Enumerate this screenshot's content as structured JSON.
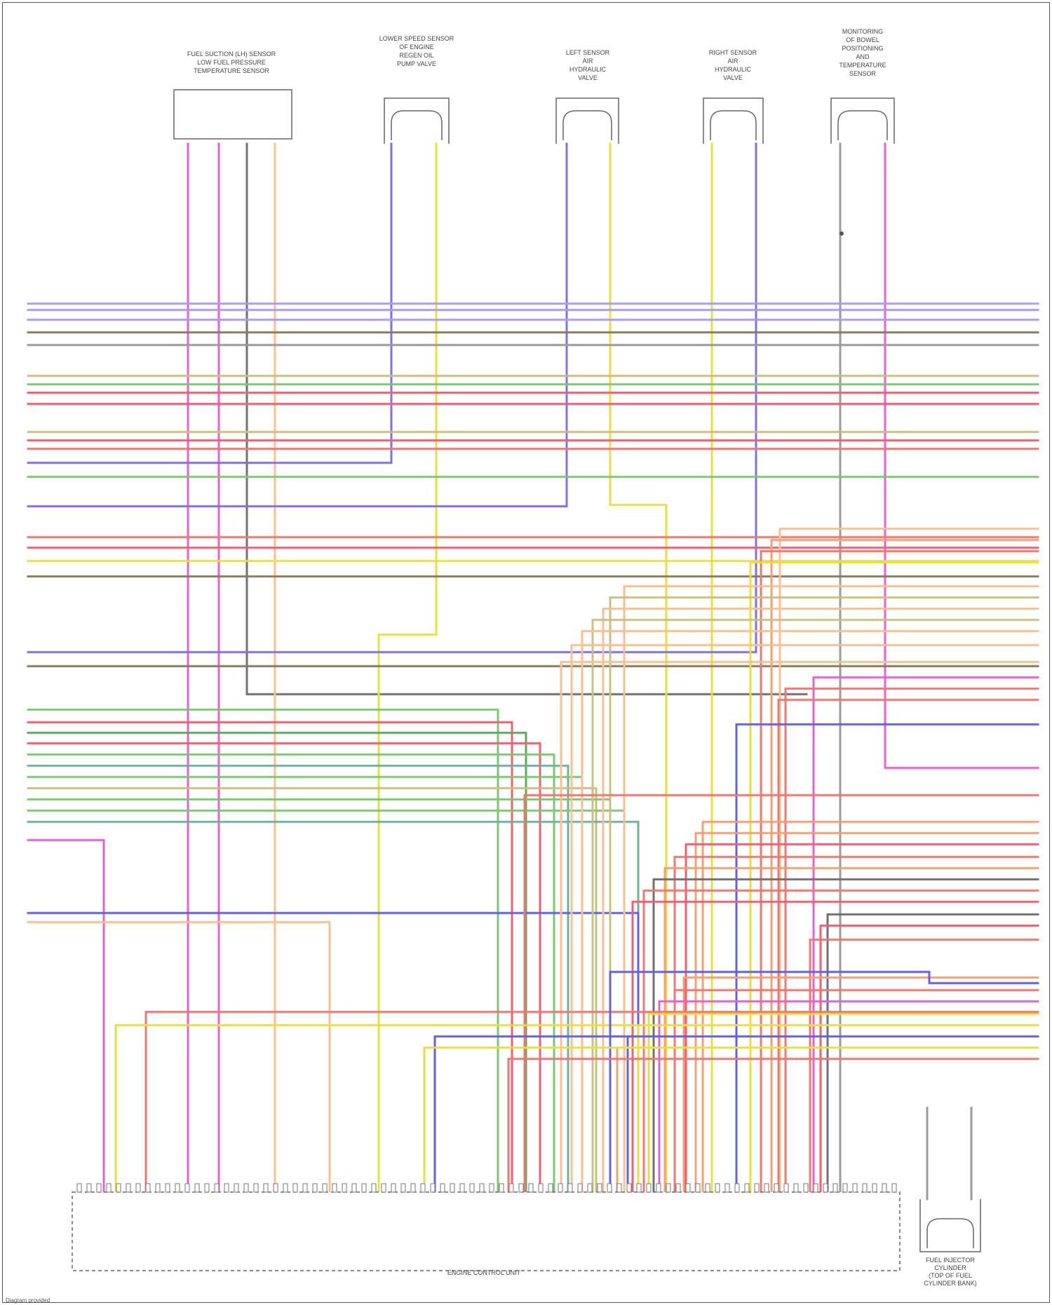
{
  "diagram": {
    "top_components": [
      {
        "name": "FUEL SUCTION (LH) SENSOR / LOW FUEL PRESSURE / TEMPERATURE SENSOR",
        "type": "box"
      },
      {
        "name": "LOWER SPEED SENSOR / OF ENGINE / REGEN OIL / PUMP VALVE",
        "type": "connector"
      },
      {
        "name": "LEFT SENSOR / AIR / HYDRAULIC / VALVE",
        "type": "connector"
      },
      {
        "name": "RIGHT SENSOR / AIR / HYDRAULIC / VALVE",
        "type": "connector"
      },
      {
        "name": "MONITORING / OF BOWEL / POSITIONING / AND / TEMPERATURE / SENSOR",
        "type": "connector"
      }
    ],
    "module_label": "ENGINE CONTROL UNIT",
    "side_component_label": "FUEL INJECTOR / CYLINDER / (TOP OF FUEL / CYLINDER BANK)",
    "footer_text": "Diagram provided",
    "wire_colors": {
      "violet": "#8070e0",
      "lightviolet": "#a89cf0",
      "brown": "#8a7a60",
      "gray": "#9a9a9a",
      "orange": "#f5a070",
      "lightorange": "#f8c090",
      "yellow": "#e8e040",
      "green": "#7cc870",
      "red": "#f06070",
      "pink": "#e860d0",
      "darkgreen": "#60a860",
      "teal": "#70b0a0",
      "olive": "#c8c080",
      "blue": "#6060e8",
      "darkgray": "#707070",
      "salmon": "#f07870"
    }
  }
}
